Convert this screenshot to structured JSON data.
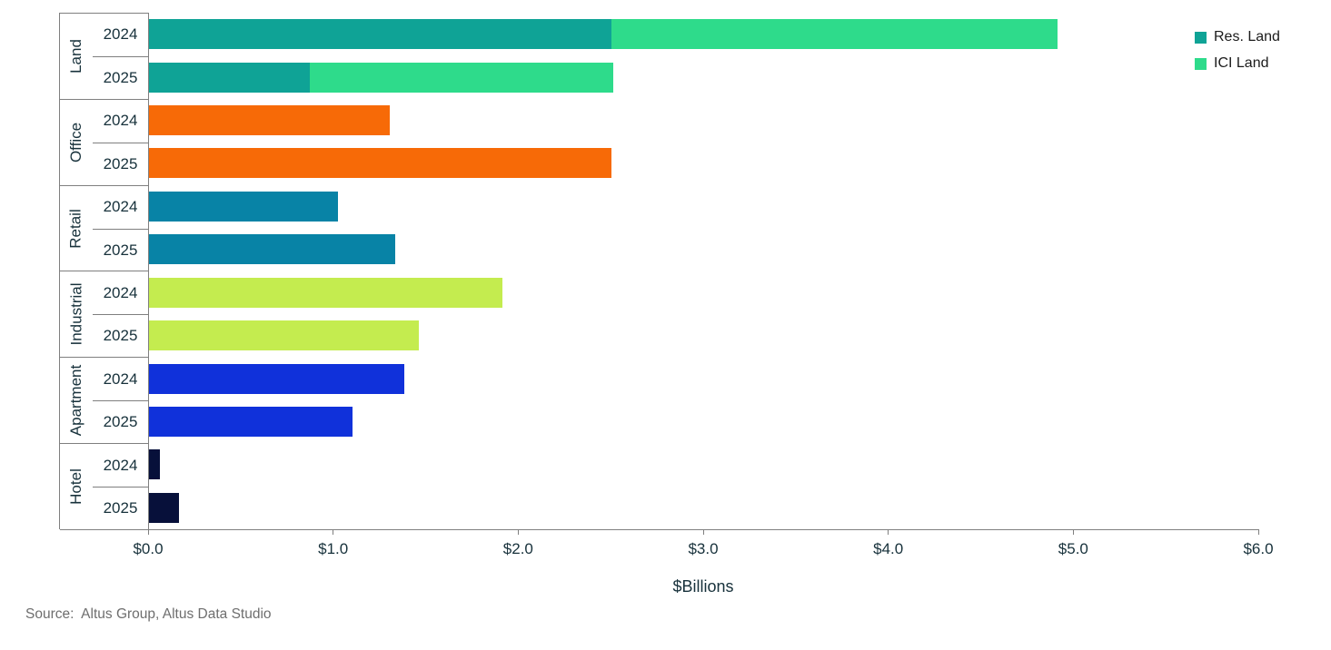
{
  "legend": {
    "items": [
      {
        "label": "Res. Land",
        "color": "#0FA396"
      },
      {
        "label": "ICI Land",
        "color": "#2EDB8B"
      }
    ]
  },
  "source_note": "Source:  Altus Group, Altus Data Studio",
  "chart_data": {
    "type": "bar",
    "orientation": "horizontal",
    "title": "",
    "xlabel": "$Billions",
    "ylabel": "",
    "xlim": [
      0,
      6
    ],
    "xtick_labels": [
      "$0.0",
      "$1.0",
      "$2.0",
      "$3.0",
      "$4.0",
      "$5.0",
      "$6.0"
    ],
    "xtick_values": [
      0,
      1,
      2,
      3,
      4,
      5,
      6
    ],
    "grid": false,
    "legend_position": "top-right",
    "units": "$Billions",
    "groups": [
      {
        "name": "Land",
        "rows": [
          {
            "year": "2024",
            "segments": [
              {
                "series": "Res. Land",
                "value": 2.5,
                "color": "#0FA396"
              },
              {
                "series": "ICI Land",
                "value": 2.41,
                "color": "#2EDB8B"
              }
            ]
          },
          {
            "year": "2025",
            "segments": [
              {
                "series": "Res. Land",
                "value": 0.87,
                "color": "#0FA396"
              },
              {
                "series": "ICI Land",
                "value": 1.64,
                "color": "#2EDB8B"
              }
            ]
          }
        ]
      },
      {
        "name": "Office",
        "rows": [
          {
            "year": "2024",
            "segments": [
              {
                "series": "Office",
                "value": 1.3,
                "color": "#F76A07"
              }
            ]
          },
          {
            "year": "2025",
            "segments": [
              {
                "series": "Office",
                "value": 2.5,
                "color": "#F76A07"
              }
            ]
          }
        ]
      },
      {
        "name": "Retail",
        "rows": [
          {
            "year": "2024",
            "segments": [
              {
                "series": "Retail",
                "value": 1.02,
                "color": "#0883A6"
              }
            ]
          },
          {
            "year": "2025",
            "segments": [
              {
                "series": "Retail",
                "value": 1.33,
                "color": "#0883A6"
              }
            ]
          }
        ]
      },
      {
        "name": "Industrial",
        "rows": [
          {
            "year": "2024",
            "segments": [
              {
                "series": "Industrial",
                "value": 1.91,
                "color": "#C4EC4F"
              }
            ]
          },
          {
            "year": "2025",
            "segments": [
              {
                "series": "Industrial",
                "value": 1.46,
                "color": "#C4EC4F"
              }
            ]
          }
        ]
      },
      {
        "name": "Apartment",
        "rows": [
          {
            "year": "2024",
            "segments": [
              {
                "series": "Apartment",
                "value": 1.38,
                "color": "#1031DA"
              }
            ]
          },
          {
            "year": "2025",
            "segments": [
              {
                "series": "Apartment",
                "value": 1.1,
                "color": "#1031DA"
              }
            ]
          }
        ]
      },
      {
        "name": "Hotel",
        "rows": [
          {
            "year": "2024",
            "segments": [
              {
                "series": "Hotel",
                "value": 0.06,
                "color": "#07103A"
              }
            ]
          },
          {
            "year": "2025",
            "segments": [
              {
                "series": "Hotel",
                "value": 0.16,
                "color": "#07103A"
              }
            ]
          }
        ]
      }
    ]
  }
}
